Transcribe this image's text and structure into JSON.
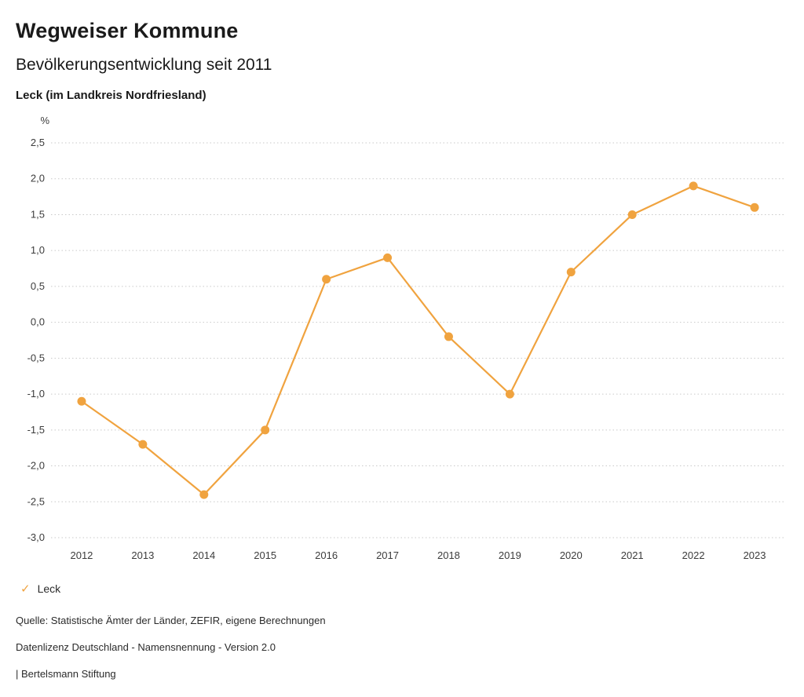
{
  "header": {
    "title": "Wegweiser Kommune",
    "subtitle": "Bevölkerungsentwicklung seit 2011",
    "location": "Leck (im Landkreis Nordfriesland)"
  },
  "chart_data": {
    "type": "line",
    "title": "Bevölkerungsentwicklung seit 2011",
    "categories": [
      "2012",
      "2013",
      "2014",
      "2015",
      "2016",
      "2017",
      "2018",
      "2019",
      "2020",
      "2021",
      "2022",
      "2023"
    ],
    "series": [
      {
        "name": "Leck",
        "values": [
          -1.1,
          -1.7,
          -2.4,
          -1.5,
          0.6,
          0.9,
          -0.2,
          -1.0,
          0.7,
          1.5,
          1.9,
          1.6
        ]
      }
    ],
    "xlabel": "",
    "ylabel": "%",
    "ylim": [
      -3.0,
      2.5
    ],
    "ytick_step": 0.5,
    "grid": true,
    "grid_style": "dotted",
    "decimal_separator": ",",
    "line_color": "#F0A33F",
    "marker": "circle",
    "legend_position": "bottom-left"
  },
  "legend": {
    "items": [
      {
        "label": "Leck",
        "color": "#F0A33F",
        "icon": "check-icon"
      }
    ]
  },
  "footer": {
    "source": "Quelle: Statistische Ämter der Länder, ZEFIR, eigene Berechnungen",
    "license": "Datenlizenz Deutschland - Namensnennung - Version 2.0",
    "attribution": "| Bertelsmann Stiftung"
  }
}
